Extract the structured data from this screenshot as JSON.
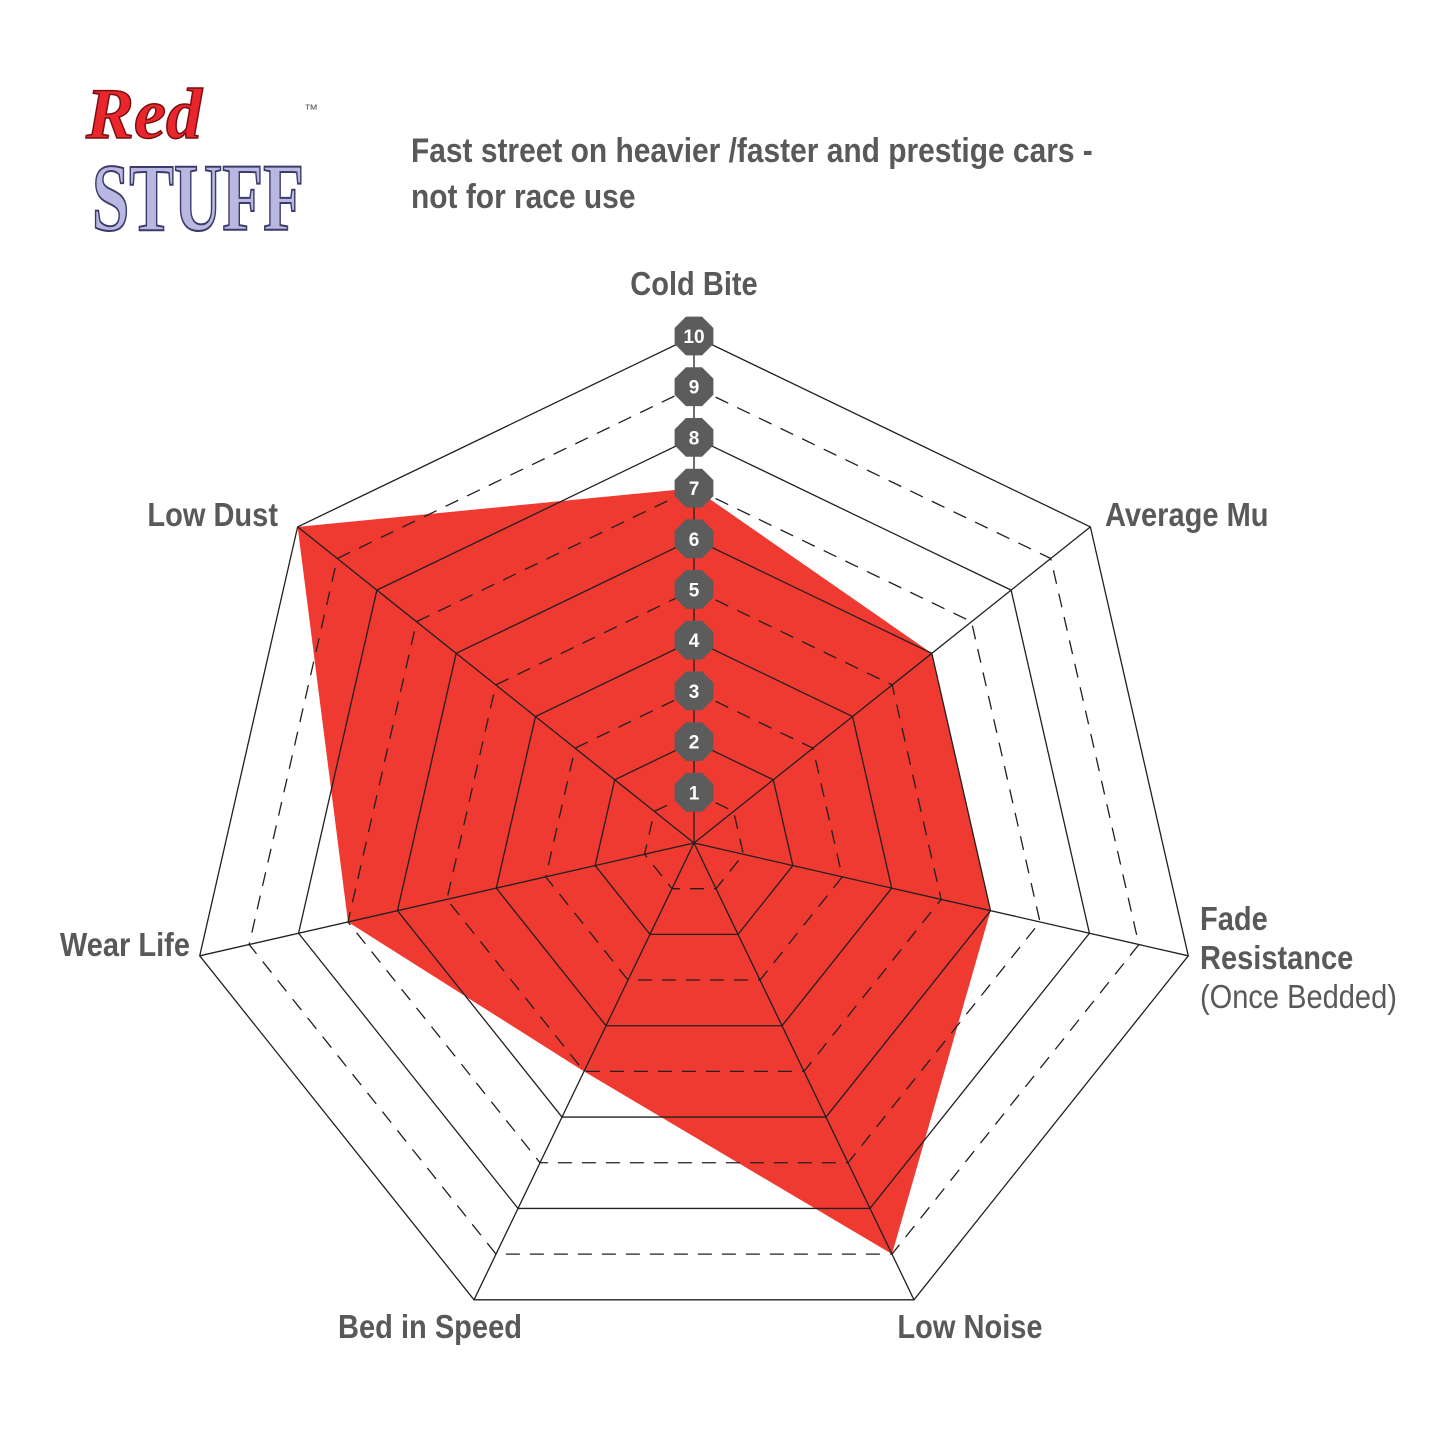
{
  "logo": {
    "word1": "Red",
    "word2": "STUFF",
    "tm": "™"
  },
  "subtitle_lines": [
    "Fast street on heavier /faster and prestige cars -",
    "not for race use"
  ],
  "colors": {
    "fill": "#ee3a31",
    "text": "#58595b",
    "badge": "#5c5c5c",
    "logo_red": "#e8262c",
    "logo_lavender": "#b9b8e0"
  },
  "chart_data": {
    "type": "radar",
    "axes": [
      "Cold Bite",
      "Average Mu",
      "Fade Resistance (Once Bedded)",
      "Low Noise",
      "Bed in Speed",
      "Wear Life",
      "Low Dust"
    ],
    "axis_label_lines": [
      [
        "Cold Bite"
      ],
      [
        "Average Mu"
      ],
      [
        "Fade",
        "Resistance",
        "(Once Bedded)"
      ],
      [
        "Low Noise"
      ],
      [
        "Bed in Speed"
      ],
      [
        "Wear Life"
      ],
      [
        "Low Dust"
      ]
    ],
    "values": [
      7,
      6,
      6,
      9,
      5,
      7,
      10
    ],
    "range": [
      0,
      10
    ],
    "scale_labels": [
      "1",
      "2",
      "3",
      "4",
      "5",
      "6",
      "7",
      "8",
      "9",
      "10"
    ],
    "grid": "heptagon rings, even solid, odd dashed"
  }
}
